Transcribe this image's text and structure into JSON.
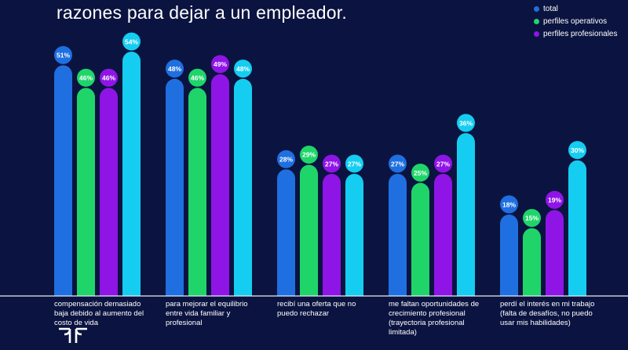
{
  "chart_data": {
    "type": "bar",
    "title": "razones para dejar a un empleador.",
    "categories": [
      "compensación demasiado baja debido al aumento del costo de vida",
      "para mejorar el equilibrio entre vida familiar y profesional",
      "recibí una oferta que no puedo rechazar",
      "me faltan oportunidades de crecimiento profesional (trayectoria profesional limitada)",
      "perdí el interés en mi trabajo (falta de desafíos, no puedo usar mis habilidades)"
    ],
    "series": [
      {
        "name": "total",
        "color": "#1f6fe0",
        "values": [
          51,
          48,
          28,
          27,
          18
        ],
        "labels": [
          "51%",
          "48%",
          "28%",
          "27%",
          "18%"
        ]
      },
      {
        "name": "perfiles operativos",
        "color": "#1fd56a",
        "values": [
          46,
          46,
          29,
          25,
          15
        ],
        "labels": [
          "46%",
          "46%",
          "29%",
          "25%",
          "15%"
        ]
      },
      {
        "name": "perfiles profesionales",
        "color": "#8f14e6",
        "values": [
          46,
          49,
          27,
          27,
          19
        ],
        "labels": [
          "46%",
          "49%",
          "27%",
          "27%",
          "19%"
        ]
      },
      {
        "name": "",
        "color": "#15cdf0",
        "values": [
          54,
          48,
          27,
          36,
          30
        ],
        "labels": [
          "54%",
          "48%",
          "27%",
          "36%",
          "30%"
        ]
      }
    ],
    "ylim": [
      0,
      54
    ],
    "xlabel": "",
    "ylabel": "",
    "legend_position": "top-right"
  },
  "legend": [
    {
      "label": "total",
      "color": "#1f6fe0"
    },
    {
      "label": "perfiles operativos",
      "color": "#1fd56a"
    },
    {
      "label": "perfiles profesionales",
      "color": "#8f14e6"
    }
  ],
  "colors": {
    "background": "#0b1440",
    "axis": "#e8ecf5",
    "text": "#ffffff"
  },
  "logo": {
    "icon": "randstad-logo-icon"
  }
}
